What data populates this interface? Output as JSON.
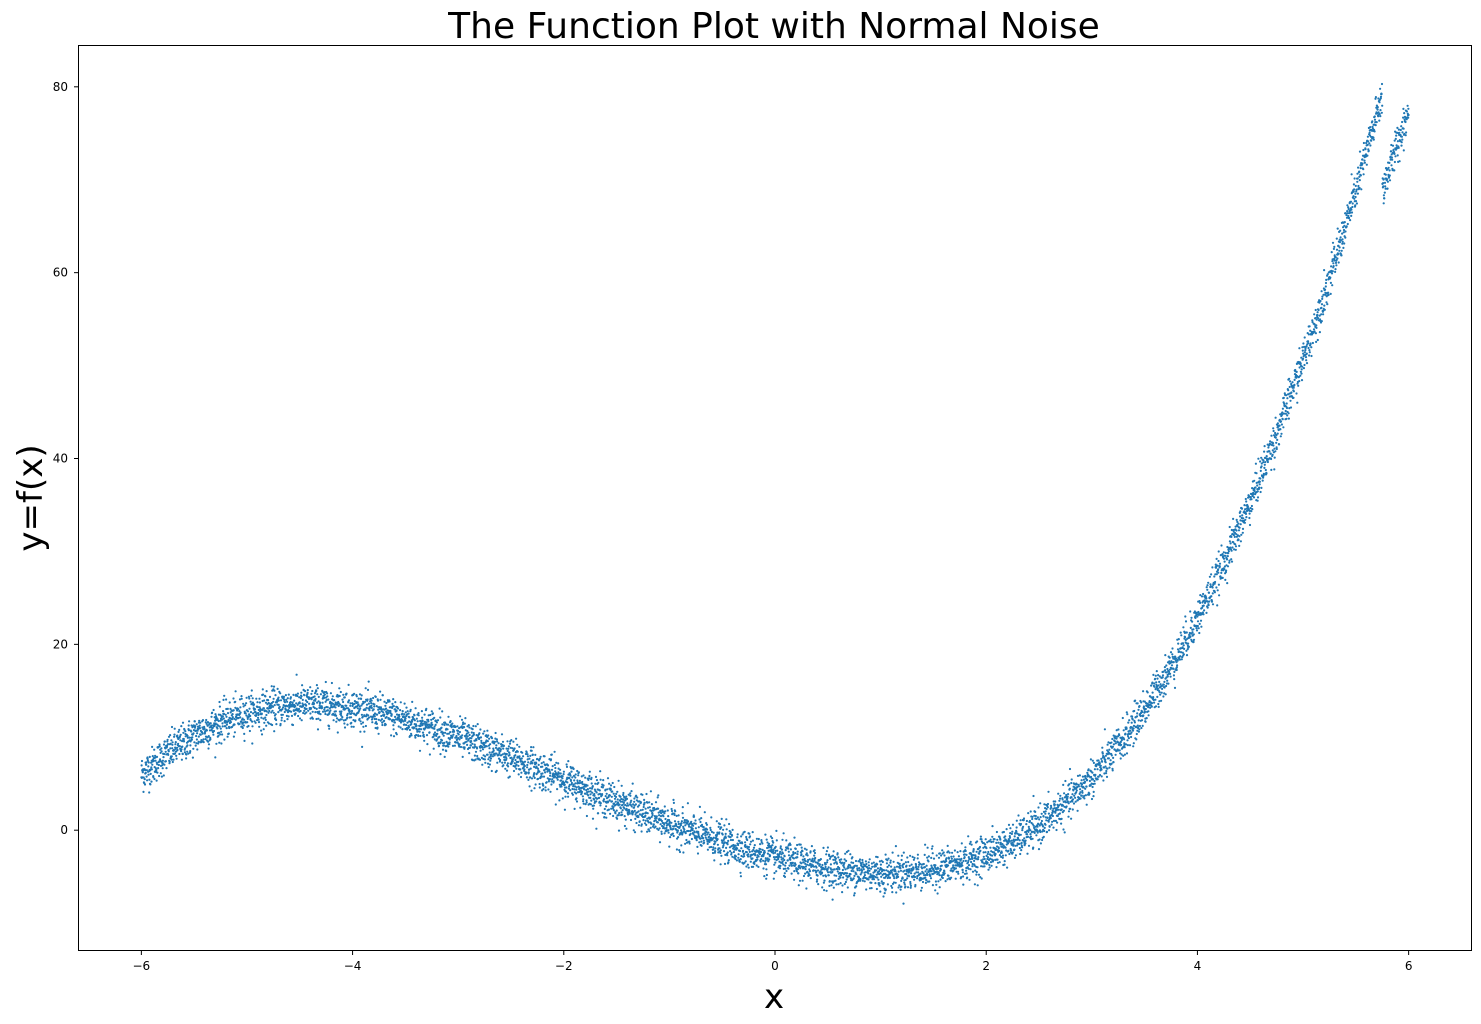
{
  "chart_data": {
    "type": "scatter",
    "title": "The Function Plot with Normal Noise",
    "xlabel": "x",
    "ylabel": "y=f(x)",
    "xlim": [
      -6.6,
      6.6
    ],
    "ylim": [
      -13,
      84.5
    ],
    "x_ticks": [
      -6,
      -4,
      -2,
      0,
      2,
      4,
      6
    ],
    "y_ticks": [
      0,
      20,
      40,
      60,
      80
    ],
    "x_tick_labels": [
      "−6",
      "−4",
      "−2",
      "0",
      "2",
      "4",
      "6"
    ],
    "y_tick_labels": [
      "0",
      "20",
      "40",
      "60",
      "80"
    ],
    "grid": false,
    "legend": "none",
    "marker_color": "#1f77b4",
    "noise": "normal, std ≈ 1",
    "curve_points": {
      "x": [
        -6.0,
        -5.75,
        -5.5,
        -5.25,
        -5.0,
        -4.75,
        -4.5,
        -4.25,
        -4.0,
        -3.75,
        -3.5,
        -3.25,
        -3.0,
        -2.75,
        -2.5,
        -2.25,
        -2.0,
        -1.75,
        -1.5,
        -1.25,
        -1.0,
        -0.75,
        -0.5,
        -0.25,
        0.0,
        0.25,
        0.5,
        0.75,
        1.0,
        1.25,
        1.5,
        1.75,
        2.0,
        2.25,
        2.5,
        2.75,
        3.0,
        3.25,
        3.5,
        3.75,
        4.0,
        4.25,
        4.5,
        4.75,
        5.0,
        5.25,
        5.5,
        5.75,
        6.0
      ],
      "y": [
        6.0,
        8.3,
        10.2,
        11.6,
        12.6,
        13.2,
        13.5,
        13.5,
        13.2,
        12.6,
        11.9,
        11.0,
        10.0,
        8.9,
        7.8,
        6.6,
        5.4,
        4.2,
        3.0,
        1.8,
        0.7,
        -0.3,
        -1.3,
        -2.2,
        -2.9,
        -3.6,
        -4.1,
        -4.4,
        -4.6,
        -4.5,
        -4.2,
        -3.6,
        -2.6,
        -1.3,
        0.5,
        2.8,
        5.6,
        9.0,
        13.0,
        17.6,
        22.8,
        28.7,
        35.3,
        42.6,
        50.6,
        59.3,
        68.8,
        79.1,
        78.0
      ]
    }
  }
}
